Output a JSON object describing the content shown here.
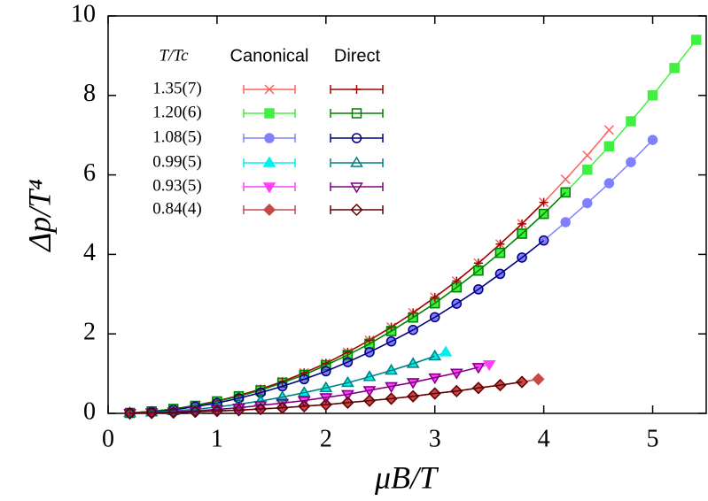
{
  "chart_data": {
    "type": "scatter",
    "xlabel": "μB/T",
    "ylabel": "Δp/T⁴",
    "xlim": [
      0,
      5.5
    ],
    "ylim": [
      0,
      10
    ],
    "xticks": [
      0,
      1,
      2,
      3,
      4,
      5
    ],
    "yticks": [
      0,
      2,
      4,
      6,
      8,
      10
    ],
    "legend_title": "T/Tc",
    "groups": [
      {
        "name": "Canonical",
        "series": [
          {
            "name": "1.35(7)",
            "color": "#ff6060",
            "marker": "x",
            "x": [
              0.2,
              0.4,
              0.6,
              0.8,
              1.0,
              1.2,
              1.4,
              1.6,
              1.8,
              2.0,
              2.2,
              2.4,
              2.6,
              2.8,
              3.0,
              3.2,
              3.4,
              3.6,
              3.8,
              4.0,
              4.2,
              4.4,
              4.6
            ],
            "values": [
              0.01,
              0.05,
              0.11,
              0.2,
              0.31,
              0.45,
              0.61,
              0.8,
              1.02,
              1.26,
              1.54,
              1.84,
              2.17,
              2.53,
              2.92,
              3.33,
              3.78,
              4.26,
              4.77,
              5.31,
              5.89,
              6.49,
              7.13
            ]
          },
          {
            "name": "1.20(6)",
            "color": "#40f040",
            "marker": "square-filled",
            "x": [
              0.2,
              0.4,
              0.6,
              0.8,
              1.0,
              1.2,
              1.4,
              1.6,
              1.8,
              2.0,
              2.2,
              2.4,
              2.6,
              2.8,
              3.0,
              3.2,
              3.4,
              3.6,
              3.8,
              4.0,
              4.2,
              4.4,
              4.6,
              4.8,
              5.0,
              5.2,
              5.4
            ],
            "values": [
              0.01,
              0.05,
              0.11,
              0.19,
              0.3,
              0.43,
              0.58,
              0.77,
              0.97,
              1.21,
              1.47,
              1.75,
              2.07,
              2.41,
              2.77,
              3.17,
              3.59,
              4.04,
              4.52,
              5.02,
              5.56,
              6.13,
              6.72,
              7.35,
              8.0,
              8.69,
              9.4
            ]
          },
          {
            "name": "1.08(5)",
            "color": "#8080ff",
            "marker": "circle-filled",
            "x": [
              0.2,
              0.4,
              0.6,
              0.8,
              1.0,
              1.2,
              1.4,
              1.6,
              1.8,
              2.0,
              2.2,
              2.4,
              2.6,
              2.8,
              3.0,
              3.2,
              3.4,
              3.6,
              3.8,
              4.0,
              4.2,
              4.4,
              4.6,
              4.8,
              5.0
            ],
            "values": [
              0.01,
              0.04,
              0.09,
              0.17,
              0.26,
              0.38,
              0.52,
              0.68,
              0.86,
              1.06,
              1.29,
              1.54,
              1.81,
              2.1,
              2.42,
              2.76,
              3.12,
              3.51,
              3.92,
              4.35,
              4.81,
              5.29,
              5.79,
              6.32,
              6.88
            ]
          },
          {
            "name": "0.99(5)",
            "color": "#00f0f0",
            "marker": "tri-up-filled",
            "x": [
              0.2,
              0.4,
              0.6,
              0.8,
              1.0,
              1.2,
              1.4,
              1.6,
              1.8,
              2.0,
              2.2,
              2.4,
              2.6,
              2.8,
              3.0,
              3.1
            ],
            "values": [
              0.01,
              0.03,
              0.06,
              0.1,
              0.16,
              0.23,
              0.31,
              0.41,
              0.52,
              0.64,
              0.77,
              0.92,
              1.08,
              1.25,
              1.44,
              1.54
            ]
          },
          {
            "name": "0.93(5)",
            "color": "#ff40ff",
            "marker": "tri-down-filled",
            "x": [
              0.2,
              0.4,
              0.6,
              0.8,
              1.0,
              1.2,
              1.4,
              1.6,
              1.8,
              2.0,
              2.2,
              2.4,
              2.6,
              2.8,
              3.0,
              3.2,
              3.4,
              3.5
            ],
            "values": [
              0,
              0.02,
              0.04,
              0.06,
              0.1,
              0.14,
              0.2,
              0.26,
              0.32,
              0.4,
              0.48,
              0.58,
              0.68,
              0.78,
              0.9,
              1.02,
              1.16,
              1.23
            ]
          },
          {
            "name": "0.84(4)",
            "color": "#c84848",
            "marker": "diamond-filled",
            "x": [
              0.2,
              0.4,
              0.6,
              0.8,
              1.0,
              1.2,
              1.4,
              1.6,
              1.8,
              2.0,
              2.2,
              2.4,
              2.6,
              2.8,
              3.0,
              3.2,
              3.4,
              3.6,
              3.8,
              3.95
            ],
            "values": [
              0,
              0.01,
              0.02,
              0.04,
              0.06,
              0.08,
              0.11,
              0.14,
              0.18,
              0.22,
              0.27,
              0.32,
              0.37,
              0.43,
              0.5,
              0.56,
              0.64,
              0.71,
              0.79,
              0.86
            ]
          }
        ]
      },
      {
        "name": "Direct",
        "series": [
          {
            "color": "#a00000",
            "marker": "plus",
            "x": [
              0.2,
              0.4,
              0.6,
              0.8,
              1.0,
              1.2,
              1.4,
              1.6,
              1.8,
              2.0,
              2.2,
              2.4,
              2.6,
              2.8,
              3.0,
              3.2,
              3.4,
              3.6,
              3.8,
              4.0
            ],
            "values": [
              0.01,
              0.05,
              0.11,
              0.2,
              0.31,
              0.45,
              0.61,
              0.8,
              1.02,
              1.26,
              1.54,
              1.84,
              2.17,
              2.53,
              2.92,
              3.33,
              3.78,
              4.26,
              4.77,
              5.31
            ]
          },
          {
            "color": "#008000",
            "marker": "square-open",
            "x": [
              0.2,
              0.4,
              0.6,
              0.8,
              1.0,
              1.2,
              1.4,
              1.6,
              1.8,
              2.0,
              2.2,
              2.4,
              2.6,
              2.8,
              3.0,
              3.2,
              3.4,
              3.6,
              3.8,
              4.0,
              4.2
            ],
            "values": [
              0.01,
              0.05,
              0.11,
              0.19,
              0.3,
              0.43,
              0.58,
              0.77,
              0.97,
              1.21,
              1.47,
              1.75,
              2.07,
              2.41,
              2.77,
              3.17,
              3.59,
              4.04,
              4.52,
              5.02,
              5.56
            ]
          },
          {
            "color": "#000080",
            "marker": "circle-open",
            "x": [
              0.2,
              0.4,
              0.6,
              0.8,
              1.0,
              1.2,
              1.4,
              1.6,
              1.8,
              2.0,
              2.2,
              2.4,
              2.6,
              2.8,
              3.0,
              3.2,
              3.4,
              3.6,
              3.8,
              4.0
            ],
            "values": [
              0.01,
              0.04,
              0.09,
              0.17,
              0.26,
              0.38,
              0.52,
              0.68,
              0.86,
              1.06,
              1.29,
              1.54,
              1.81,
              2.1,
              2.42,
              2.76,
              3.12,
              3.51,
              3.92,
              4.35
            ]
          },
          {
            "color": "#008080",
            "marker": "tri-up-open",
            "x": [
              0.2,
              0.4,
              0.6,
              0.8,
              1.0,
              1.2,
              1.4,
              1.6,
              1.8,
              2.0,
              2.2,
              2.4,
              2.6,
              2.8,
              3.0
            ],
            "values": [
              0.01,
              0.03,
              0.06,
              0.1,
              0.16,
              0.23,
              0.31,
              0.41,
              0.52,
              0.64,
              0.77,
              0.92,
              1.08,
              1.25,
              1.44
            ]
          },
          {
            "color": "#800080",
            "marker": "tri-down-open",
            "x": [
              0.2,
              0.4,
              0.6,
              0.8,
              1.0,
              1.2,
              1.4,
              1.6,
              1.8,
              2.0,
              2.2,
              2.4,
              2.6,
              2.8,
              3.0,
              3.2,
              3.4
            ],
            "values": [
              0,
              0.02,
              0.04,
              0.06,
              0.1,
              0.14,
              0.2,
              0.26,
              0.32,
              0.4,
              0.48,
              0.58,
              0.68,
              0.78,
              0.9,
              1.02,
              1.16
            ]
          },
          {
            "color": "#600000",
            "marker": "diamond-open",
            "x": [
              0.2,
              0.4,
              0.6,
              0.8,
              1.0,
              1.2,
              1.4,
              1.6,
              1.8,
              2.0,
              2.2,
              2.4,
              2.6,
              2.8,
              3.0,
              3.2,
              3.4,
              3.6,
              3.8
            ],
            "values": [
              0,
              0.01,
              0.02,
              0.04,
              0.06,
              0.08,
              0.11,
              0.14,
              0.18,
              0.22,
              0.27,
              0.32,
              0.37,
              0.43,
              0.5,
              0.56,
              0.64,
              0.71,
              0.79
            ]
          }
        ]
      }
    ]
  }
}
